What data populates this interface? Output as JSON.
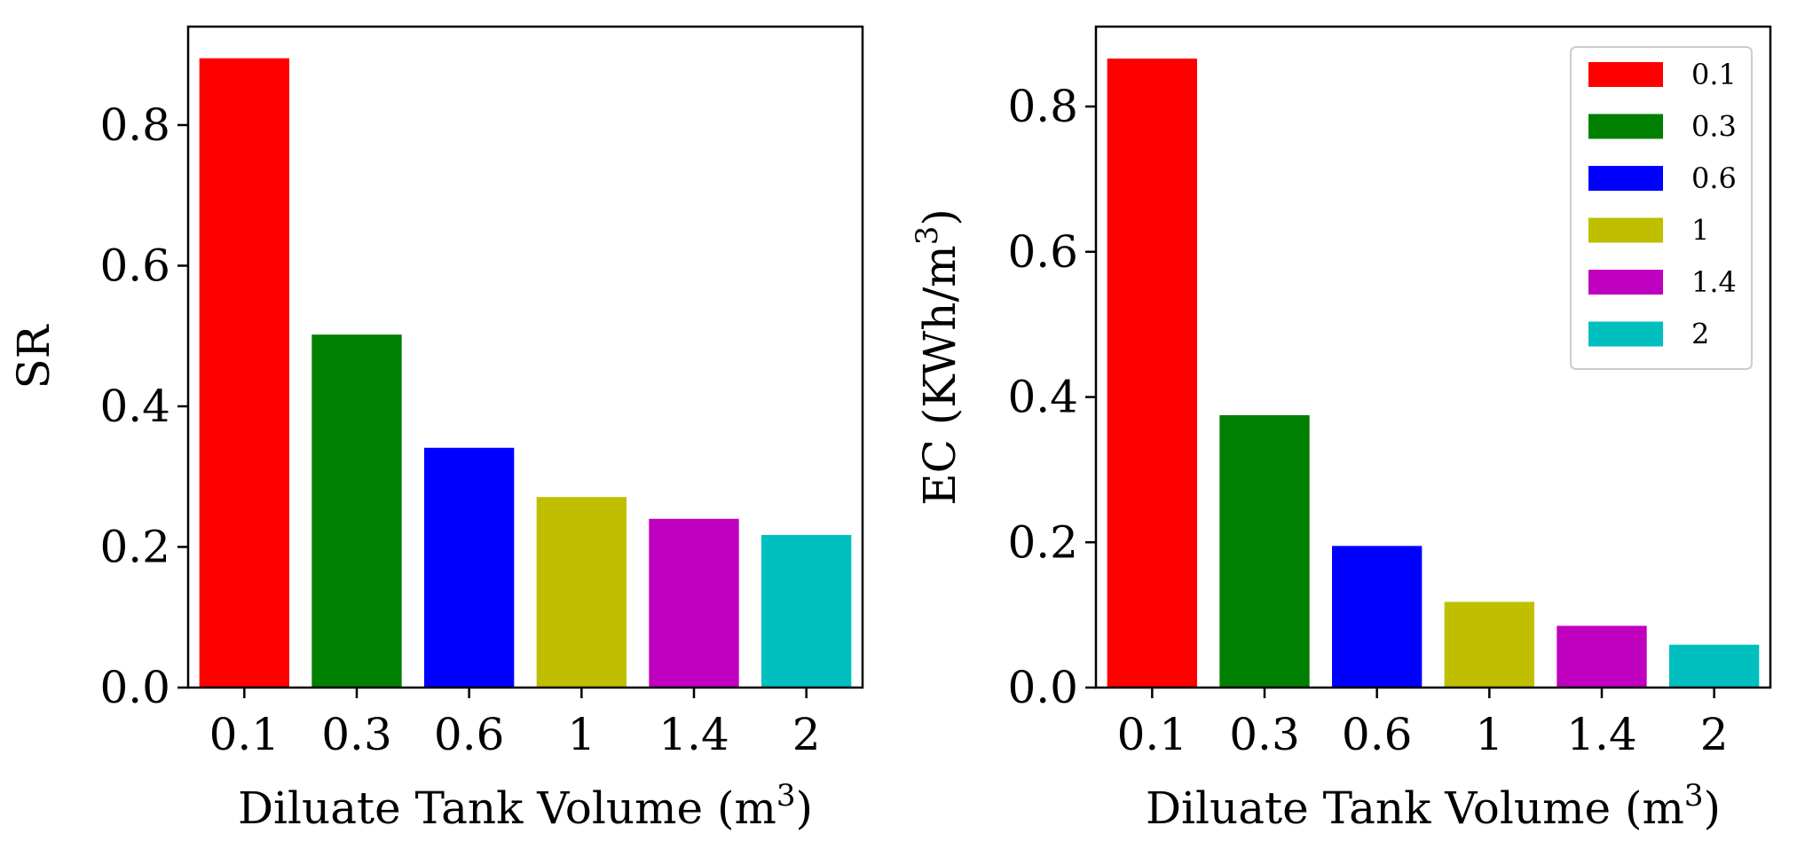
{
  "chart_data": [
    {
      "type": "bar",
      "categories": [
        "0.1",
        "0.3",
        "0.6",
        "1",
        "1.4",
        "2"
      ],
      "values": [
        0.895,
        0.502,
        0.341,
        0.271,
        0.24,
        0.217
      ],
      "colors": [
        "#ff0000",
        "#008000",
        "#0000ff",
        "#bfbf00",
        "#bf00bf",
        "#00bfbf"
      ],
      "xlabel": "Diluate Tank Volume (m",
      "xlabel_sup": "3",
      "xlabel_end": ")",
      "ylabel": "SR",
      "ylim": [
        0,
        0.94
      ],
      "yticks": [
        0.0,
        0.2,
        0.4,
        0.6,
        0.8
      ],
      "ytick_labels": [
        "0.0",
        "0.2",
        "0.4",
        "0.6",
        "0.8"
      ],
      "grid": false,
      "legend": null
    },
    {
      "type": "bar",
      "categories": [
        "0.1",
        "0.3",
        "0.6",
        "1",
        "1.4",
        "2"
      ],
      "values": [
        0.866,
        0.375,
        0.195,
        0.118,
        0.085,
        0.059
      ],
      "colors": [
        "#ff0000",
        "#008000",
        "#0000ff",
        "#bfbf00",
        "#bf00bf",
        "#00bfbf"
      ],
      "xlabel": "Diluate Tank Volume (m",
      "xlabel_sup": "3",
      "xlabel_end": ")",
      "ylabel": "EC (KWh/m",
      "ylabel_sup": "3",
      "ylabel_end": ")",
      "ylim": [
        0,
        0.91
      ],
      "yticks": [
        0.0,
        0.2,
        0.4,
        0.6,
        0.8
      ],
      "ytick_labels": [
        "0.0",
        "0.2",
        "0.4",
        "0.6",
        "0.8"
      ],
      "grid": false,
      "legend": {
        "position": "top-right",
        "entries": [
          "0.1",
          "0.3",
          "0.6",
          "1",
          "1.4",
          "2"
        ]
      }
    }
  ]
}
